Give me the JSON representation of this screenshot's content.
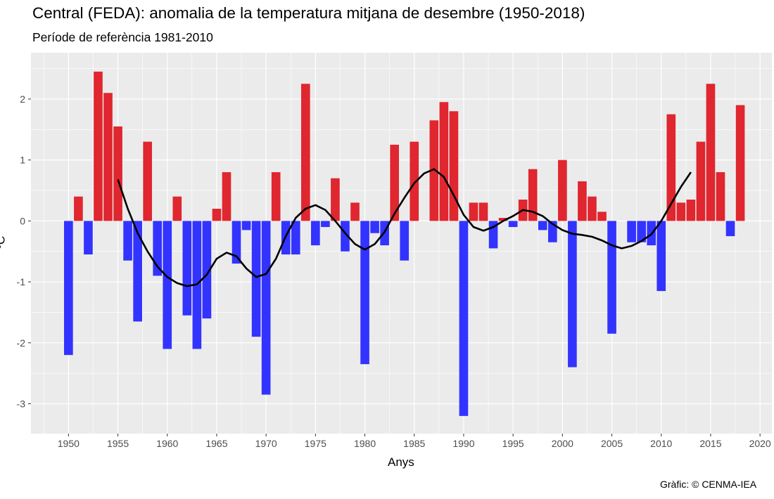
{
  "chart_data": {
    "type": "bar",
    "title": "Central (FEDA): anomalia de la temperatura mitjana de desembre (1950-2018)",
    "subtitle": "Període de referència 1981-2010",
    "xlabel": "Anys",
    "ylabel": "ºC",
    "caption": "Gràfic: © CENMA-IEA",
    "xlim": [
      1946.2,
      2021.2
    ],
    "ylim": [
      -3.49,
      2.76
    ],
    "grid": true,
    "x_ticks": [
      1950,
      1955,
      1960,
      1965,
      1970,
      1975,
      1980,
      1985,
      1990,
      1995,
      2000,
      2005,
      2010,
      2015,
      2020
    ],
    "y_ticks": [
      -3,
      -2,
      -1,
      0,
      1,
      2
    ],
    "colors": {
      "positive": "#E0262F",
      "negative": "#3333FF",
      "smooth": "#000000",
      "panel": "#EBEBEB"
    },
    "x": [
      1950,
      1951,
      1952,
      1953,
      1954,
      1955,
      1956,
      1957,
      1958,
      1959,
      1960,
      1961,
      1962,
      1963,
      1964,
      1965,
      1966,
      1967,
      1968,
      1969,
      1970,
      1971,
      1972,
      1973,
      1974,
      1975,
      1976,
      1977,
      1978,
      1979,
      1980,
      1981,
      1982,
      1983,
      1984,
      1985,
      1986,
      1987,
      1988,
      1989,
      1990,
      1991,
      1992,
      1993,
      1994,
      1995,
      1996,
      1997,
      1998,
      1999,
      2000,
      2001,
      2002,
      2003,
      2004,
      2005,
      2006,
      2007,
      2008,
      2009,
      2010,
      2011,
      2012,
      2013,
      2014,
      2015,
      2016,
      2017,
      2018
    ],
    "values": [
      -2.2,
      0.4,
      -0.55,
      2.45,
      2.1,
      1.55,
      -0.65,
      -1.65,
      1.3,
      -0.9,
      -2.1,
      0.4,
      -1.55,
      -2.1,
      -1.6,
      0.2,
      0.8,
      -0.7,
      -0.15,
      -1.9,
      -2.85,
      0.8,
      -0.55,
      -0.55,
      2.25,
      -0.4,
      -0.1,
      0.7,
      -0.5,
      0.3,
      -2.35,
      -0.2,
      -0.4,
      1.25,
      -0.65,
      1.3,
      0,
      1.65,
      1.95,
      1.8,
      -3.2,
      0.3,
      0.3,
      -0.45,
      0.05,
      -0.1,
      0.35,
      0.85,
      -0.15,
      -0.35,
      1.0,
      -2.4,
      0.65,
      0.4,
      0.15,
      -1.85,
      0,
      -0.35,
      -0.35,
      -0.4,
      -1.15,
      1.75,
      0.3,
      0.35,
      1.3,
      2.25,
      0.8,
      -0.25,
      1.9
    ],
    "smooth": {
      "x": [
        1955,
        1956,
        1957,
        1958,
        1959,
        1960,
        1961,
        1962,
        1963,
        1964,
        1965,
        1966,
        1967,
        1968,
        1969,
        1970,
        1971,
        1972,
        1973,
        1974,
        1975,
        1976,
        1977,
        1978,
        1979,
        1980,
        1981,
        1982,
        1983,
        1984,
        1985,
        1986,
        1987,
        1988,
        1989,
        1990,
        1991,
        1992,
        1993,
        1994,
        1995,
        1996,
        1997,
        1998,
        1999,
        2000,
        2001,
        2002,
        2003,
        2004,
        2005,
        2006,
        2007,
        2008,
        2009,
        2010,
        2011,
        2012,
        2013
      ],
      "y": [
        0.68,
        0.2,
        -0.2,
        -0.5,
        -0.75,
        -0.92,
        -1.02,
        -1.07,
        -1.04,
        -0.88,
        -0.62,
        -0.52,
        -0.58,
        -0.78,
        -0.92,
        -0.87,
        -0.62,
        -0.25,
        0.05,
        0.2,
        0.26,
        0.18,
        0.0,
        -0.2,
        -0.38,
        -0.47,
        -0.38,
        -0.18,
        0.12,
        0.38,
        0.62,
        0.78,
        0.85,
        0.72,
        0.42,
        0.1,
        -0.1,
        -0.16,
        -0.1,
        0.0,
        0.08,
        0.18,
        0.15,
        0.08,
        -0.05,
        -0.15,
        -0.21,
        -0.23,
        -0.26,
        -0.32,
        -0.4,
        -0.45,
        -0.41,
        -0.33,
        -0.22,
        0.0,
        0.28,
        0.56,
        0.8
      ]
    }
  }
}
